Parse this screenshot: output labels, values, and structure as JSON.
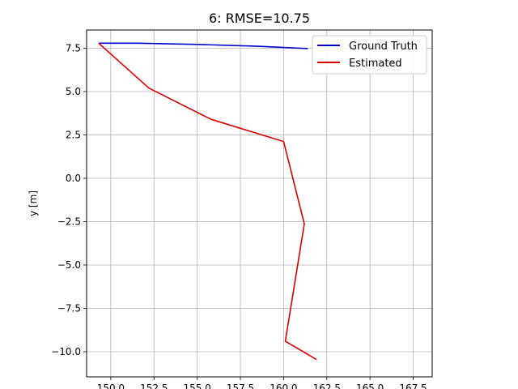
{
  "chart_data": {
    "type": "line",
    "title": "6: RMSE=10.75",
    "xlabel": "",
    "ylabel": "y [m]",
    "xlim": [
      148.6,
      168.6
    ],
    "ylim": [
      -11.45,
      8.55
    ],
    "grid": true,
    "legend_position": "top-right",
    "x_ticks": [
      150.0,
      152.5,
      155.0,
      157.5,
      160.0,
      162.5,
      165.0,
      167.5
    ],
    "x_tick_labels": [
      "150.0",
      "152.5",
      "155.0",
      "157.5",
      "160.0",
      "162.5",
      "165.0",
      "167.5"
    ],
    "y_ticks": [
      7.5,
      5.0,
      2.5,
      0.0,
      -2.5,
      -5.0,
      -7.5,
      -10.0
    ],
    "y_tick_labels": [
      "7.5",
      "5.0",
      "2.5",
      "0.0",
      "−2.5",
      "−5.0",
      "−7.5",
      "−10.0"
    ],
    "series": [
      {
        "name": "Ground Truth",
        "color": "#0000cc",
        "points": [
          [
            149.3,
            7.79
          ],
          [
            151.6,
            7.79
          ],
          [
            155.0,
            7.72
          ],
          [
            158.5,
            7.61
          ],
          [
            161.4,
            7.48
          ]
        ]
      },
      {
        "name": "Estimated",
        "color": "#dd0000",
        "points": [
          [
            149.3,
            7.79
          ],
          [
            152.2,
            5.2
          ],
          [
            155.8,
            3.4
          ],
          [
            160.0,
            2.12
          ],
          [
            161.2,
            -2.63
          ],
          [
            160.1,
            -9.4
          ],
          [
            161.9,
            -10.45
          ]
        ]
      }
    ]
  }
}
